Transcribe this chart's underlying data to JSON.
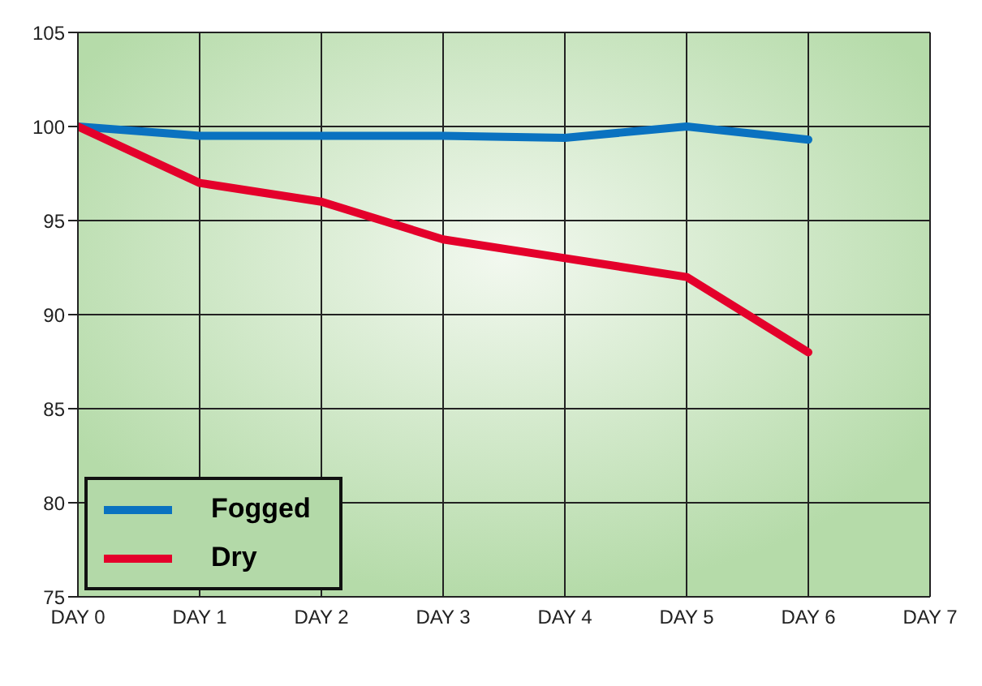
{
  "chart_data": {
    "type": "line",
    "categories": [
      "DAY 0",
      "DAY 1",
      "DAY 2",
      "DAY 3",
      "DAY 4",
      "DAY 5",
      "DAY 6",
      "DAY 7"
    ],
    "series": [
      {
        "name": "Fogged",
        "color": "#0a72c0",
        "values": [
          100,
          99.5,
          99.5,
          99.5,
          99.4,
          100,
          99.3,
          null
        ]
      },
      {
        "name": "Dry",
        "color": "#e4002b",
        "values": [
          100,
          97,
          96,
          94,
          93,
          92,
          88,
          null
        ]
      }
    ],
    "ylim": [
      75,
      105
    ],
    "yticks": [
      75,
      80,
      85,
      90,
      95,
      100,
      105
    ],
    "grid": true,
    "legend": "bottom left",
    "marker": "none",
    "line_style": "solid"
  }
}
